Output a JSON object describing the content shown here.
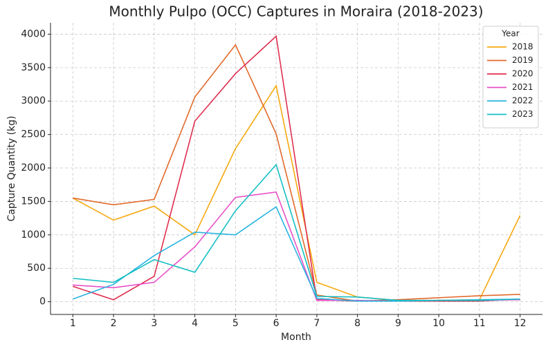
{
  "chart_data": {
    "type": "line",
    "title": "Monthly Pulpo (OCC) Captures in Moraira (2018-2023)",
    "xlabel": "Month",
    "ylabel": "Capture Quantity (kg)",
    "x": [
      1,
      2,
      3,
      4,
      5,
      6,
      7,
      8,
      9,
      10,
      11,
      12
    ],
    "xlim": [
      0.45,
      12.55
    ],
    "xticks": [
      1,
      2,
      3,
      4,
      5,
      6,
      7,
      8,
      9,
      10,
      11,
      12
    ],
    "ylim": [
      -190,
      4170
    ],
    "yticks": [
      0,
      500,
      1000,
      1500,
      2000,
      2500,
      3000,
      3500,
      4000
    ],
    "grid": true,
    "legend": "upper right",
    "legend_title": "Year",
    "series": [
      {
        "name": "2018",
        "color": "#f5a80f",
        "values": [
          1550,
          1220,
          1430,
          1000,
          2290,
          3230,
          290,
          70,
          20,
          20,
          30,
          1290
        ]
      },
      {
        "name": "2019",
        "color": "#e2692a",
        "values": [
          1550,
          1450,
          1530,
          3060,
          3840,
          2510,
          100,
          10,
          30,
          60,
          90,
          110
        ]
      },
      {
        "name": "2020",
        "color": "#df2f4f",
        "values": [
          230,
          30,
          380,
          2700,
          3410,
          3970,
          30,
          10,
          10,
          10,
          10,
          40
        ]
      },
      {
        "name": "2021",
        "color": "#e84fc8",
        "values": [
          250,
          210,
          290,
          820,
          1560,
          1640,
          20,
          20,
          10,
          20,
          20,
          30
        ]
      },
      {
        "name": "2022",
        "color": "#28b4e2",
        "values": [
          40,
          260,
          690,
          1040,
          1000,
          1420,
          50,
          10,
          10,
          20,
          30,
          40
        ]
      },
      {
        "name": "2023",
        "color": "#14bfc4",
        "values": [
          350,
          290,
          630,
          440,
          1360,
          2050,
          80,
          70,
          20,
          20,
          20,
          40
        ]
      }
    ]
  }
}
